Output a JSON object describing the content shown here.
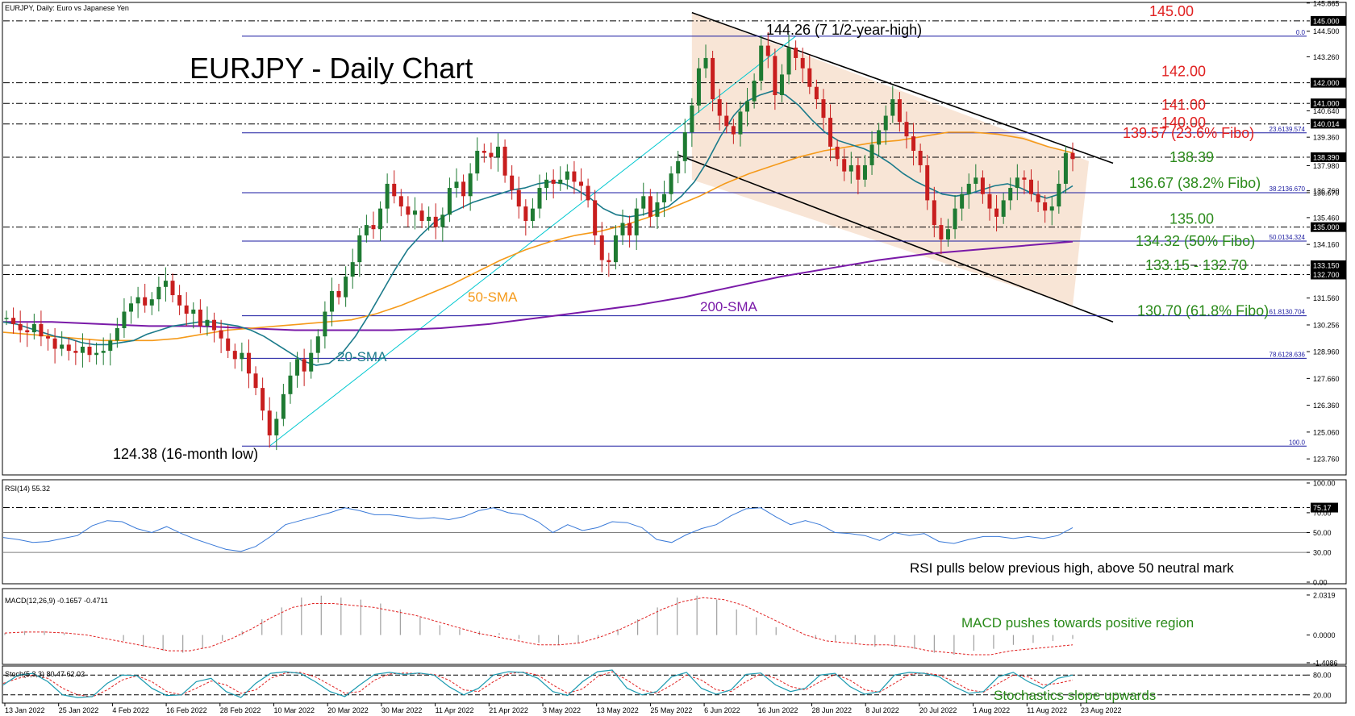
{
  "chart_data": {
    "type": "line",
    "instrument_header": "EURJPY, Daily:  Euro vs Japanese Yen",
    "title": "EURJPY - Daily Chart",
    "colors": {
      "bull_candle": "#1e7a32",
      "bear_candle": "#c81e1e",
      "sma20": "#1a7a8a",
      "sma50": "#f59a1a",
      "sma200": "#7a1aa8",
      "channel_fill": "#f5dcc8",
      "fibo_line": "#1a1aa0",
      "trend_line": "#00c8d0",
      "red_label": "#e02020",
      "green_label": "#2a8a1a",
      "rsi_line": "#3a7ad8",
      "macd_signal": "#e02020",
      "macd_hist": "#a0a0a0",
      "stoch_main": "#1a9ab0",
      "stoch_signal": "#e02020"
    },
    "main_panel": {
      "ylim": [
        123.1,
        145.7
      ],
      "y_ticks": [
        "145.865",
        "145.000",
        "144.500",
        "143.260",
        "142.000",
        "141.000",
        "140.640",
        "140.014",
        "139.360",
        "138.390",
        "137.980",
        "136.760",
        "136.670",
        "135.460",
        "135.000",
        "134.160",
        "133.150",
        "132.700",
        "131.560",
        "130.256",
        "128.960",
        "127.660",
        "126.360",
        "125.060",
        "123.760"
      ],
      "price_labels": [
        {
          "text": "145.00",
          "price": 145.0,
          "color": "red"
        },
        {
          "text": "142.00",
          "price": 142.0,
          "color": "red"
        },
        {
          "text": "141.00",
          "price": 141.0,
          "color": "red"
        },
        {
          "text": "140.00",
          "price": 140.0,
          "color": "red"
        },
        {
          "text": "139.57 (23.6% Fibo)",
          "price": 139.57,
          "color": "red"
        },
        {
          "text": "138.39",
          "price": 138.39,
          "color": "green"
        },
        {
          "text": "136.67 (38.2% Fibo)",
          "price": 136.67,
          "color": "green"
        },
        {
          "text": "135.00",
          "price": 135.0,
          "color": "green"
        },
        {
          "text": "134.32 (50% Fibo)",
          "price": 134.32,
          "color": "green"
        },
        {
          "text": "133.15 - 132.70",
          "price": 133.15,
          "color": "green"
        },
        {
          "text": "130.70 (61.8% Fibo)",
          "price": 130.7,
          "color": "green"
        }
      ],
      "dashed_levels": [
        145.0,
        142.0,
        141.0,
        140.0,
        138.39,
        135.0,
        133.15,
        132.7
      ],
      "highlighted_levels": [
        "145.000",
        "142.000",
        "141.000",
        "140.014",
        "138.390",
        "135.000",
        "133.150",
        "132.700"
      ],
      "fibo_levels": [
        {
          "label": "0.0",
          "price": 144.26
        },
        {
          "label": "23.6139.574",
          "price": 139.57
        },
        {
          "label": "38.2136.670",
          "price": 136.67
        },
        {
          "label": "50.0134.324",
          "price": 134.32
        },
        {
          "label": "61.8130.704",
          "price": 130.7
        },
        {
          "label": "78.6128.636",
          "price": 128.64
        },
        {
          "label": "100.0",
          "price": 124.38
        }
      ],
      "annotations": {
        "high": "144.26  (7 1/2-year-high)",
        "low": "124.38 (16-month low)",
        "sma20": "20-SMA",
        "sma50": "50-SMA",
        "sma200": "200-SMA"
      }
    },
    "x_labels": [
      "13 Jan 2022",
      "25 Jan 2022",
      "4 Feb 2022",
      "16 Feb 2022",
      "28 Feb 2022",
      "10 Mar 2022",
      "20 Mar 2022",
      "30 Mar 2022",
      "11 Apr 2022",
      "21 Apr 2022",
      "3 May 2022",
      "13 May 2022",
      "25 May 2022",
      "6 Jun 2022",
      "16 Jun 2022",
      "28 Jun 2022",
      "8 Jul 2022",
      "20 Jul 2022",
      "1 Aug 2022",
      "11 Aug 2022",
      "23 Aug 2022"
    ],
    "candles_close": [
      130.6,
      130.3,
      130.0,
      129.9,
      130.3,
      129.7,
      129.6,
      129.1,
      129.3,
      129.0,
      128.9,
      129.2,
      128.8,
      128.9,
      129.0,
      129.5,
      130.1,
      130.9,
      131.3,
      131.6,
      131.2,
      131.5,
      132.1,
      132.4,
      131.7,
      131.2,
      130.8,
      131.0,
      130.2,
      130.5,
      130.0,
      129.6,
      129.0,
      128.6,
      128.9,
      127.9,
      127.2,
      126.1,
      124.9,
      125.7,
      126.9,
      127.8,
      128.6,
      128.0,
      128.9,
      129.7,
      130.9,
      131.9,
      131.6,
      132.6,
      133.3,
      134.6,
      135.1,
      134.9,
      135.9,
      137.1,
      136.5,
      136.0,
      135.6,
      135.8,
      135.3,
      135.5,
      135.0,
      135.6,
      136.9,
      137.2,
      136.5,
      137.6,
      138.7,
      138.6,
      138.4,
      138.9,
      137.5,
      136.8,
      136.0,
      135.3,
      135.9,
      136.9,
      137.3,
      137.1,
      137.3,
      137.7,
      137.2,
      137.0,
      136.3,
      134.6,
      133.4,
      133.3,
      134.6,
      135.2,
      134.6,
      135.9,
      136.5,
      135.5,
      136.2,
      136.6,
      137.6,
      138.2,
      139.6,
      140.9,
      142.7,
      143.2,
      141.2,
      140.4,
      139.9,
      139.5,
      140.6,
      141.1,
      142.1,
      143.8,
      143.3,
      141.4,
      142.4,
      143.7,
      143.2,
      142.7,
      141.8,
      141.2,
      140.3,
      138.9,
      138.3,
      137.7,
      138.0,
      137.3,
      138.0,
      139.0,
      139.7,
      140.4,
      141.2,
      140.1,
      139.4,
      138.7,
      138.0,
      136.3,
      135.1,
      134.4,
      134.9,
      135.9,
      136.6,
      137.1,
      137.4,
      136.6,
      135.9,
      135.5,
      136.3,
      136.9,
      137.4,
      137.3,
      136.6,
      136.2,
      135.8,
      136.0,
      137.1,
      138.6,
      138.3
    ],
    "sma20": [
      130.4,
      130.3,
      130.1,
      129.9,
      129.7,
      129.6,
      129.4,
      129.3,
      129.3,
      129.4,
      129.5,
      129.8,
      130.0,
      130.2,
      130.3,
      130.4,
      130.4,
      130.3,
      130.2,
      130.0,
      129.7,
      129.3,
      128.9,
      128.5,
      128.3,
      128.4,
      128.9,
      129.7,
      130.7,
      131.8,
      132.9,
      133.9,
      134.6,
      135.2,
      135.6,
      135.9,
      136.2,
      136.4,
      136.6,
      136.8,
      136.9,
      137.1,
      137.2,
      137.1,
      136.8,
      136.4,
      135.9,
      135.6,
      135.5,
      135.6,
      135.8,
      136.0,
      136.5,
      137.2,
      138.2,
      139.4,
      140.4,
      141.1,
      141.4,
      141.6,
      141.4,
      140.9,
      140.2,
      139.6,
      139.2,
      139.0,
      138.8,
      138.5,
      138.1,
      137.6,
      137.2,
      136.9,
      136.6,
      136.5,
      136.6,
      136.8,
      137.0,
      137.1,
      136.9,
      136.6,
      136.4,
      136.6,
      137.0
    ],
    "sma50": [
      129.9,
      129.8,
      129.7,
      129.6,
      129.5,
      129.5,
      129.5,
      129.6,
      129.8,
      130.0,
      130.1,
      130.2,
      130.3,
      130.4,
      130.5,
      130.8,
      131.2,
      131.7,
      132.2,
      132.8,
      133.4,
      133.9,
      134.3,
      134.6,
      134.8,
      135.1,
      135.5,
      136.0,
      136.5,
      137.1,
      137.6,
      138.0,
      138.4,
      138.7,
      138.9,
      139.1,
      139.2,
      139.4,
      139.6,
      139.6,
      139.5,
      139.3,
      138.9,
      138.6
    ],
    "sma200": [
      130.4,
      130.4,
      130.3,
      130.2,
      130.2,
      130.1,
      130.0,
      130.0,
      130.0,
      130.1,
      130.3,
      130.6,
      130.9,
      131.2,
      131.6,
      132.1,
      132.6,
      133.0,
      133.4,
      133.7,
      133.9,
      134.1,
      134.3
    ],
    "rsi_panel": {
      "header": "RSI(14) 55.32",
      "ylim": [
        0,
        100
      ],
      "y_ticks": [
        "100.00",
        "75.17",
        "70.00",
        "50.00",
        "30.00",
        "0.00"
      ],
      "highlighted": "75.17",
      "values": [
        45,
        43,
        40,
        41,
        44,
        47,
        57,
        62,
        61,
        54,
        50,
        56,
        49,
        43,
        38,
        33,
        31,
        36,
        46,
        58,
        62,
        66,
        70,
        75,
        72,
        68,
        68,
        66,
        64,
        65,
        63,
        66,
        72,
        75,
        70,
        68,
        61,
        50,
        58,
        52,
        55,
        61,
        60,
        55,
        43,
        40,
        48,
        54,
        58,
        67,
        74,
        75,
        66,
        58,
        62,
        58,
        50,
        49,
        47,
        42,
        50,
        47,
        49,
        41,
        39,
        43,
        46,
        46,
        44,
        46,
        44,
        47,
        55
      ],
      "annotation": "RSI pulls below previous high, above 50 neutral mark"
    },
    "macd_panel": {
      "header": "MACD(12,26,9) -0.1657 -0.4711",
      "y_ticks": [
        "2.0319",
        "0.0000",
        "-1.4086"
      ],
      "ylim": [
        -1.41,
        2.03
      ],
      "histogram": [
        0.1,
        0.2,
        0.2,
        0.1,
        0.0,
        0.0,
        -0.3,
        -0.6,
        -0.8,
        -0.9,
        -0.7,
        -0.3,
        0.2,
        0.8,
        1.4,
        1.9,
        2.0,
        1.9,
        1.8,
        1.6,
        1.3,
        0.9,
        0.5,
        0.3,
        0.2,
        0.1,
        -0.2,
        -0.4,
        -0.5,
        -0.4,
        -0.1,
        0.3,
        0.8,
        1.4,
        1.9,
        2.0,
        1.8,
        1.3,
        0.9,
        0.4,
        0.0,
        -0.2,
        -0.3,
        -0.4,
        -0.6,
        -0.6,
        -0.7,
        -0.9,
        -1.0,
        -0.8,
        -0.7,
        -0.5,
        -0.4,
        -0.3,
        -0.2
      ],
      "signal": [
        0.1,
        0.15,
        0.15,
        0.1,
        0.0,
        -0.2,
        -0.4,
        -0.6,
        -0.8,
        -0.8,
        -0.6,
        -0.2,
        0.3,
        0.9,
        1.4,
        1.6,
        1.6,
        1.5,
        1.4,
        1.2,
        1.0,
        0.7,
        0.4,
        0.1,
        -0.1,
        -0.3,
        -0.5,
        -0.5,
        -0.4,
        -0.1,
        0.3,
        0.8,
        1.3,
        1.7,
        1.9,
        1.8,
        1.5,
        1.0,
        0.5,
        0.0,
        -0.3,
        -0.4,
        -0.5,
        -0.5,
        -0.6,
        -0.8,
        -0.9,
        -1.0,
        -1.0,
        -0.8,
        -0.7,
        -0.6,
        -0.5
      ],
      "annotation": "MACD pushes towards positive region"
    },
    "stoch_panel": {
      "header": "Stoch(5,3,3) 80.47 62.02",
      "y_ticks": [
        "80.00",
        "20.00"
      ],
      "ylim": [
        0,
        100
      ],
      "main": [
        50,
        80,
        85,
        60,
        20,
        12,
        15,
        55,
        80,
        78,
        40,
        18,
        20,
        60,
        70,
        30,
        12,
        55,
        85,
        90,
        85,
        60,
        30,
        15,
        50,
        82,
        88,
        82,
        86,
        80,
        45,
        20,
        40,
        80,
        90,
        88,
        70,
        30,
        18,
        60,
        90,
        95,
        40,
        20,
        30,
        75,
        88,
        40,
        22,
        35,
        82,
        86,
        50,
        30,
        40,
        80,
        85,
        45,
        22,
        30,
        80,
        88,
        85,
        75,
        45,
        25,
        30,
        75,
        88,
        60,
        40,
        70,
        80
      ],
      "signal": [
        55,
        70,
        80,
        70,
        40,
        20,
        14,
        35,
        65,
        78,
        60,
        30,
        20,
        40,
        62,
        50,
        25,
        35,
        70,
        86,
        88,
        75,
        50,
        25,
        30,
        65,
        83,
        86,
        84,
        82,
        65,
        35,
        30,
        60,
        84,
        89,
        80,
        50,
        25,
        38,
        75,
        90,
        65,
        35,
        25,
        50,
        80,
        65,
        35,
        30,
        60,
        84,
        70,
        45,
        35,
        60,
        82,
        65,
        35,
        28,
        55,
        82,
        86,
        80,
        60,
        35,
        28,
        55,
        80,
        75,
        50,
        55,
        65
      ],
      "annotation": "Stochastics slope upwards"
    }
  }
}
